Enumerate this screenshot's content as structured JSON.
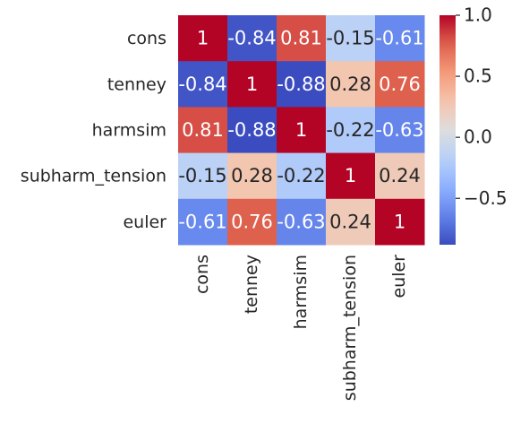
{
  "chart_data": {
    "type": "heatmap",
    "title": "",
    "xlabel": "",
    "ylabel": "",
    "colormap": "coolwarm",
    "vmin": -0.88,
    "vmax": 1.0,
    "x_categories": [
      "cons",
      "tenney",
      "harmsim",
      "subharm_tension",
      "euler"
    ],
    "y_categories": [
      "cons",
      "tenney",
      "harmsim",
      "subharm_tension",
      "euler"
    ],
    "values": [
      [
        1,
        -0.84,
        0.81,
        -0.15,
        -0.61
      ],
      [
        -0.84,
        1,
        -0.88,
        0.28,
        0.76
      ],
      [
        0.81,
        -0.88,
        1,
        -0.22,
        -0.63
      ],
      [
        -0.15,
        0.28,
        -0.22,
        1,
        0.24
      ],
      [
        -0.61,
        0.76,
        -0.63,
        0.24,
        1
      ]
    ],
    "annotations": [
      [
        "1",
        "-0.84",
        "0.81",
        "-0.15",
        "-0.61"
      ],
      [
        "-0.84",
        "1",
        "-0.88",
        "0.28",
        "0.76"
      ],
      [
        "0.81",
        "-0.88",
        "1",
        "-0.22",
        "-0.63"
      ],
      [
        "-0.15",
        "0.28",
        "-0.22",
        "1",
        "0.24"
      ],
      [
        "-0.61",
        "0.76",
        "-0.63",
        "0.24",
        "1"
      ]
    ],
    "colorbar": {
      "ticks": [
        1.0,
        0.5,
        0.0,
        -0.5
      ],
      "tick_labels": [
        "1.0",
        "0.5",
        "0.0",
        "−0.5"
      ]
    }
  }
}
